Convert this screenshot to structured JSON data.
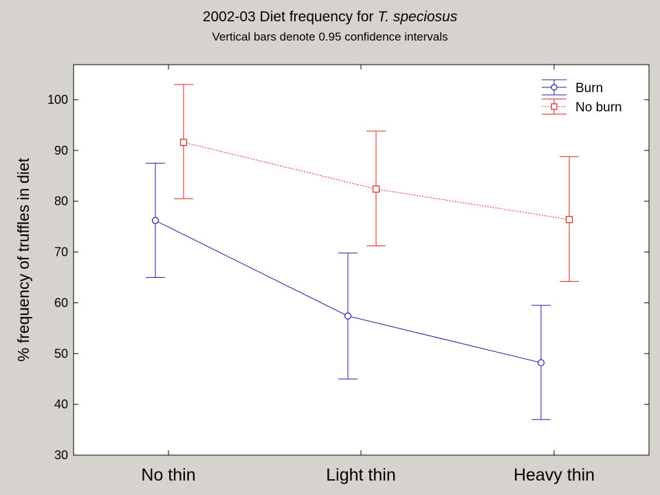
{
  "chart_data": {
    "type": "line",
    "title_prefix": "2002-03 Diet frequency for",
    "title_species": "T. speciosus",
    "subtitle": "Vertical bars denote 0.95 confidence intervals",
    "xlabel": "",
    "ylabel": "% frequency of truffles in diet",
    "categories": [
      "No thin",
      "Light thin",
      "Heavy thin"
    ],
    "ylim": [
      30,
      105
    ],
    "yticks": [
      30,
      40,
      50,
      60,
      70,
      80,
      90,
      100
    ],
    "grid": false,
    "legend_position": "top-right",
    "series": [
      {
        "name": "Burn",
        "color": "#1c1ca8",
        "line_style": "solid",
        "marker": "circle",
        "values": [
          76.2,
          57.4,
          48.2
        ],
        "ci_upper": [
          87.5,
          69.8,
          59.5
        ],
        "ci_lower": [
          65.0,
          45.0,
          37.0
        ]
      },
      {
        "name": "No burn",
        "color": "#e01c1c",
        "line_style": "dotted",
        "marker": "square",
        "values": [
          91.6,
          82.4,
          76.4
        ],
        "ci_upper": [
          103.0,
          93.8,
          88.8
        ],
        "ci_lower": [
          80.5,
          71.2,
          64.2
        ]
      }
    ]
  }
}
